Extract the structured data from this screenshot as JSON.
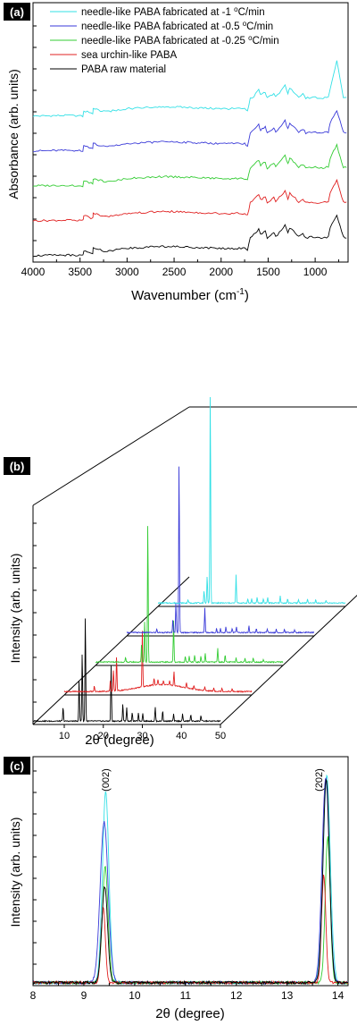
{
  "chart_data": [
    {
      "panel": "(a)",
      "type": "line",
      "xlabel": "Wavenumber (cm",
      "xlabel_sup": "-1",
      "xlabel_end": ")",
      "ylabel": "Absorbance (arb. units)",
      "xlim": [
        4000,
        650
      ],
      "x_reversed": true,
      "xticks": [
        "4000",
        "3500",
        "3000",
        "2500",
        "2000",
        "1500",
        "1000"
      ],
      "yticks_labeled": false,
      "legend_position": "top-left",
      "legend": [
        {
          "color": "#33e0e6",
          "prefix": "needle-like PABA fabricated at -1 ",
          "sup": "o",
          "suffix": "C/min"
        },
        {
          "color": "#3a3ad8",
          "prefix": "needle-like PABA fabricated at -0.5 ",
          "sup": "o",
          "suffix": "C/min"
        },
        {
          "color": "#33cc33",
          "prefix": "needle-like PABA fabricated at -0.25 ",
          "sup": "o",
          "suffix": "C/min"
        },
        {
          "color": "#e02020",
          "prefix": "sea urchin-like PABA",
          "sup": "",
          "suffix": ""
        },
        {
          "color": "#000000",
          "prefix": "PABA raw material",
          "sup": "",
          "suffix": ""
        }
      ],
      "series": [
        {
          "color": "#33e0e6",
          "offset": 4.0,
          "x": [
            4000,
            3600,
            3470,
            3460,
            3365,
            3360,
            3230,
            3000,
            2600,
            2000,
            1750,
            1720,
            1690,
            1650,
            1600,
            1580,
            1530,
            1510,
            1440,
            1420,
            1320,
            1290,
            1270,
            1175,
            1130,
            1100,
            1020,
            935,
            860,
            840,
            770,
            700,
            650
          ],
          "y": [
            0.05,
            0.08,
            0.05,
            0.3,
            0.15,
            0.4,
            0.25,
            0.4,
            0.5,
            0.4,
            0.4,
            0.3,
            0.9,
            1.0,
            1.3,
            1.05,
            1.2,
            0.9,
            1.15,
            0.95,
            1.5,
            1.1,
            1.4,
            0.95,
            1.1,
            0.9,
            0.95,
            0.9,
            0.95,
            1.4,
            2.7,
            0.95,
            0.9
          ]
        },
        {
          "color": "#3a3ad8",
          "offset": 3.0,
          "x": [
            4000,
            3600,
            3470,
            3460,
            3365,
            3360,
            3230,
            3000,
            2600,
            2000,
            1750,
            1720,
            1690,
            1650,
            1600,
            1580,
            1530,
            1510,
            1440,
            1420,
            1320,
            1290,
            1270,
            1175,
            1130,
            1100,
            1020,
            935,
            860,
            840,
            770,
            700,
            650
          ],
          "y": [
            0.05,
            0.08,
            0.05,
            0.3,
            0.15,
            0.4,
            0.25,
            0.4,
            0.5,
            0.4,
            0.4,
            0.3,
            0.9,
            1.1,
            1.3,
            1.05,
            1.2,
            0.9,
            1.15,
            0.95,
            1.5,
            1.1,
            1.4,
            0.95,
            1.1,
            0.9,
            0.95,
            0.9,
            0.95,
            1.4,
            2.0,
            0.95,
            0.9
          ]
        },
        {
          "color": "#33cc33",
          "offset": 2.0,
          "x": [
            4000,
            3600,
            3470,
            3460,
            3365,
            3360,
            3230,
            3000,
            2600,
            2000,
            1750,
            1720,
            1690,
            1650,
            1600,
            1580,
            1530,
            1510,
            1440,
            1420,
            1320,
            1290,
            1270,
            1175,
            1130,
            1100,
            1020,
            935,
            860,
            840,
            770,
            700,
            650
          ],
          "y": [
            0.05,
            0.08,
            0.05,
            0.3,
            0.15,
            0.4,
            0.25,
            0.4,
            0.5,
            0.4,
            0.4,
            0.3,
            0.9,
            1.1,
            1.3,
            1.05,
            1.2,
            0.9,
            1.15,
            0.95,
            1.5,
            1.1,
            1.4,
            0.95,
            1.1,
            0.9,
            0.95,
            0.9,
            0.95,
            1.4,
            2.0,
            0.95,
            0.9
          ]
        },
        {
          "color": "#e02020",
          "offset": 1.0,
          "x": [
            4000,
            3600,
            3470,
            3460,
            3365,
            3360,
            3230,
            3000,
            2600,
            2000,
            1750,
            1720,
            1690,
            1650,
            1600,
            1580,
            1530,
            1510,
            1440,
            1420,
            1320,
            1290,
            1270,
            1175,
            1130,
            1100,
            1020,
            935,
            860,
            840,
            770,
            700,
            650
          ],
          "y": [
            0.05,
            0.08,
            0.05,
            0.3,
            0.15,
            0.4,
            0.25,
            0.4,
            0.5,
            0.4,
            0.4,
            0.3,
            0.9,
            1.1,
            1.3,
            1.05,
            1.2,
            0.9,
            1.15,
            0.95,
            1.5,
            1.1,
            1.4,
            0.95,
            1.1,
            0.9,
            0.95,
            0.9,
            0.95,
            1.4,
            2.0,
            0.95,
            0.9
          ]
        },
        {
          "color": "#000000",
          "offset": 0.0,
          "x": [
            4000,
            3600,
            3470,
            3460,
            3365,
            3360,
            3230,
            3000,
            2600,
            2000,
            1750,
            1720,
            1690,
            1650,
            1600,
            1580,
            1530,
            1510,
            1440,
            1420,
            1320,
            1290,
            1270,
            1175,
            1130,
            1100,
            1020,
            935,
            860,
            840,
            770,
            700,
            650
          ],
          "y": [
            0.05,
            0.08,
            0.05,
            0.3,
            0.15,
            0.4,
            0.25,
            0.4,
            0.5,
            0.4,
            0.4,
            0.3,
            0.9,
            1.1,
            1.3,
            1.05,
            1.2,
            0.9,
            1.15,
            0.95,
            1.5,
            1.1,
            1.4,
            0.95,
            1.1,
            0.9,
            0.95,
            0.9,
            0.95,
            1.4,
            2.0,
            0.95,
            0.9
          ]
        }
      ],
      "ylim": [
        0,
        6.6
      ]
    },
    {
      "panel": "(b)",
      "type": "line",
      "style": "3d-stacked-waterfall",
      "xlabel": "2θ (degree)",
      "ylabel": "Intensity (arb. units)",
      "xlim": [
        2,
        50
      ],
      "xticks": [
        "10",
        "20",
        "30",
        "40",
        "50"
      ],
      "yticks_labeled": false,
      "series": [
        {
          "color": "#000000",
          "depth": 0,
          "x": [
            9.7,
            13.8,
            14.6,
            15.4,
            22.0,
            25.0,
            26.0,
            27.4,
            29.0,
            30.1,
            33.3,
            35.2,
            38.0,
            40.3,
            42.4,
            45.0
          ],
          "y": [
            20,
            60,
            100,
            155,
            80,
            25,
            20,
            12,
            12,
            12,
            20,
            15,
            10,
            10,
            10,
            8
          ]
        },
        {
          "color": "#e02020",
          "depth": 1,
          "x": [
            9.7,
            13.8,
            14.6,
            15.4,
            22.0,
            25.0,
            26.0,
            27.4,
            29.0,
            30.1,
            33.3,
            35.2,
            38.0,
            40.3,
            42.4,
            45.0
          ],
          "y": [
            8,
            15,
            30,
            50,
            80,
            10,
            8,
            6,
            6,
            20,
            8,
            6,
            5,
            5,
            5,
            4
          ]
        },
        {
          "color": "#33cc33",
          "depth": 2,
          "x": [
            9.7,
            13.8,
            14.6,
            15.4,
            22.0,
            25.0,
            26.0,
            27.4,
            29.0,
            30.1,
            33.3,
            35.2,
            38.0,
            40.3,
            42.4,
            45.0
          ],
          "y": [
            6,
            25,
            60,
            205,
            60,
            8,
            8,
            10,
            8,
            12,
            20,
            10,
            6,
            6,
            6,
            4
          ]
        },
        {
          "color": "#3a3ad8",
          "depth": 3,
          "x": [
            9.7,
            13.8,
            14.6,
            15.4,
            22.0,
            25.0,
            26.0,
            27.4,
            29.0,
            30.1,
            33.3,
            35.2,
            38.0,
            40.3,
            42.4,
            45.0
          ],
          "y": [
            5,
            18,
            45,
            250,
            35,
            6,
            6,
            8,
            6,
            8,
            10,
            6,
            5,
            5,
            5,
            4
          ]
        },
        {
          "color": "#33e0e6",
          "depth": 4,
          "x": [
            9.7,
            13.8,
            14.6,
            15.4,
            22.0,
            25.0,
            26.0,
            27.4,
            29.0,
            30.1,
            33.3,
            35.2,
            38.0,
            40.3,
            42.4,
            45.0
          ],
          "y": [
            5,
            18,
            40,
            310,
            40,
            6,
            6,
            8,
            6,
            8,
            10,
            6,
            5,
            5,
            5,
            4
          ]
        }
      ]
    },
    {
      "panel": "(c)",
      "type": "line",
      "xlabel": "2θ (degree)",
      "ylabel": "Intensity (arb. units)",
      "xlim": [
        8,
        14.2
      ],
      "xticks": [
        "8",
        "9",
        "10",
        "11",
        "12",
        "13",
        "14"
      ],
      "yticks_labeled": false,
      "ylim": [
        0,
        1.07
      ],
      "annotations": [
        {
          "text": "(002)",
          "x": 9.42
        },
        {
          "text": "(202)",
          "x": 13.62
        }
      ],
      "series": [
        {
          "color": "#33e0e6",
          "peaks": [
            {
              "c": 9.43,
              "h": 0.89,
              "w": 0.09
            },
            {
              "c": 13.78,
              "h": 0.97,
              "w": 0.1
            }
          ]
        },
        {
          "color": "#3a3ad8",
          "peaks": [
            {
              "c": 9.4,
              "h": 0.75,
              "w": 0.11
            },
            {
              "c": 13.76,
              "h": 0.96,
              "w": 0.1
            }
          ]
        },
        {
          "color": "#33cc33",
          "peaks": [
            {
              "c": 9.42,
              "h": 0.54,
              "w": 0.08
            },
            {
              "c": 13.8,
              "h": 0.68,
              "w": 0.07
            }
          ]
        },
        {
          "color": "#e02020",
          "peaks": [
            {
              "c": 9.38,
              "h": 0.35,
              "w": 0.06
            },
            {
              "c": 13.72,
              "h": 0.5,
              "w": 0.06
            }
          ]
        },
        {
          "color": "#000000",
          "peaks": [
            {
              "c": 9.41,
              "h": 0.45,
              "w": 0.08
            },
            {
              "c": 13.77,
              "h": 0.95,
              "w": 0.09
            }
          ]
        }
      ]
    }
  ]
}
